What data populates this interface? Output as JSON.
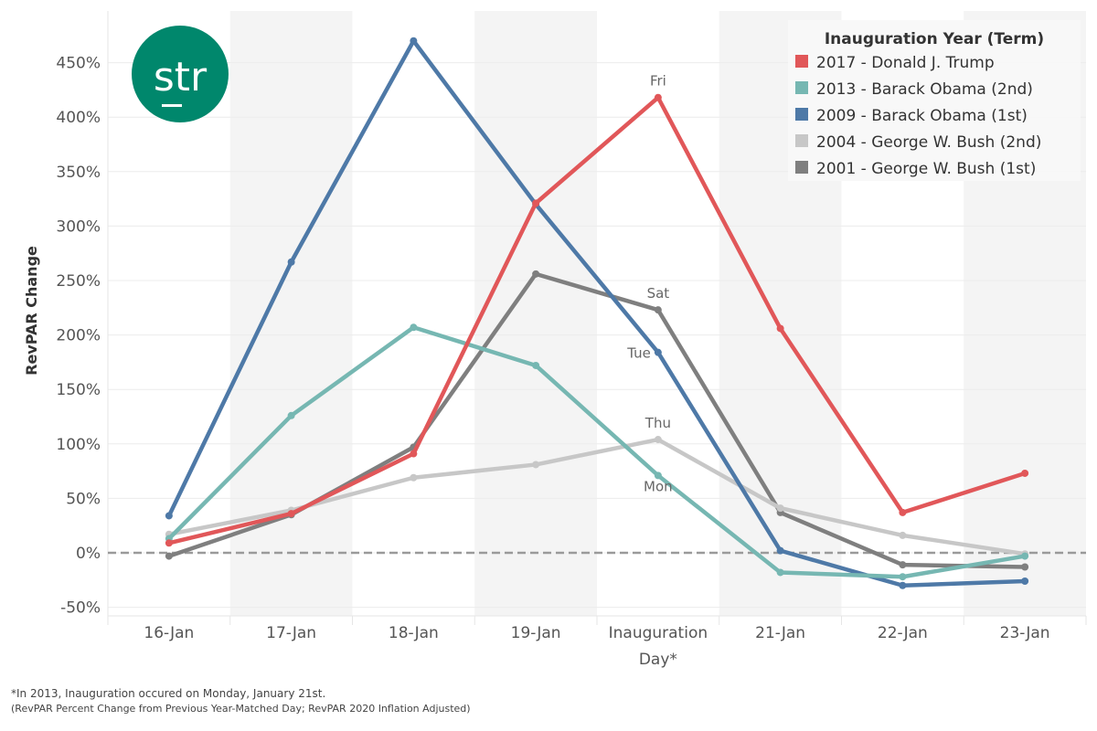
{
  "logo": {
    "text": "str",
    "color": "#00876c"
  },
  "chart_data": {
    "type": "line",
    "title": "",
    "xlabel": "",
    "ylabel": "RevPAR Change",
    "ylim": [
      -60,
      480
    ],
    "yticks": [
      -50,
      0,
      50,
      100,
      150,
      200,
      250,
      300,
      350,
      400,
      450
    ],
    "ytick_labels": [
      "-50%",
      "0%",
      "50%",
      "100%",
      "150%",
      "200%",
      "250%",
      "300%",
      "350%",
      "400%",
      "450%"
    ],
    "categories": [
      "16-Jan",
      "17-Jan",
      "18-Jan",
      "19-Jan",
      "Inauguration Day*",
      "21-Jan",
      "22-Jan",
      "23-Jan"
    ],
    "category_lines": [
      [
        "16-Jan"
      ],
      [
        "17-Jan"
      ],
      [
        "18-Jan"
      ],
      [
        "19-Jan"
      ],
      [
        "Inauguration",
        "Day*"
      ],
      [
        "21-Jan"
      ],
      [
        "22-Jan"
      ],
      [
        "23-Jan"
      ]
    ],
    "grid": true,
    "reference_line": {
      "value": 0,
      "style": "dashed"
    },
    "alternating_band_categories": [
      1,
      3,
      5,
      7
    ],
    "legend": {
      "title": "Inauguration Year (Term)",
      "placement": "top-right"
    },
    "series": [
      {
        "name": "2017 - Donald J. Trump",
        "color": "#e15759",
        "values": [
          9,
          36,
          91,
          321,
          418,
          206,
          37,
          73
        ]
      },
      {
        "name": "2013 - Barack Obama (2nd)",
        "color": "#76b7b2",
        "values": [
          13,
          126,
          207,
          172,
          71,
          -18,
          -22,
          -3
        ]
      },
      {
        "name": "2009 - Barack Obama (1st)",
        "color": "#4e79a7",
        "values": [
          34,
          267,
          470,
          320,
          184,
          2,
          -30,
          -26
        ]
      },
      {
        "name": "2004 - George W. Bush (2nd)",
        "color": "#c7c7c7",
        "values": [
          17,
          39,
          69,
          81,
          104,
          41,
          16,
          -1
        ]
      },
      {
        "name": "2001 - George W. Bush (1st)",
        "color": "#7f7f7f",
        "values": [
          -3,
          35,
          97,
          256,
          223,
          37,
          -11,
          -13
        ]
      }
    ],
    "annotations": [
      {
        "text": "Fri",
        "series": 0,
        "category": 4,
        "position": "above"
      },
      {
        "text": "Sat",
        "series": 4,
        "category": 4,
        "position": "above"
      },
      {
        "text": "Tue",
        "series": 2,
        "category": 4,
        "position": "left"
      },
      {
        "text": "Thu",
        "series": 3,
        "category": 4,
        "position": "above"
      },
      {
        "text": "Mon",
        "series": 1,
        "category": 4,
        "position": "below"
      }
    ]
  },
  "footnotes": [
    "*In 2013, Inauguration occured on Monday, January 21st.",
    "(RevPAR Percent Change from Previous Year-Matched Day; RevPAR 2020 Inflation Adjusted)"
  ]
}
